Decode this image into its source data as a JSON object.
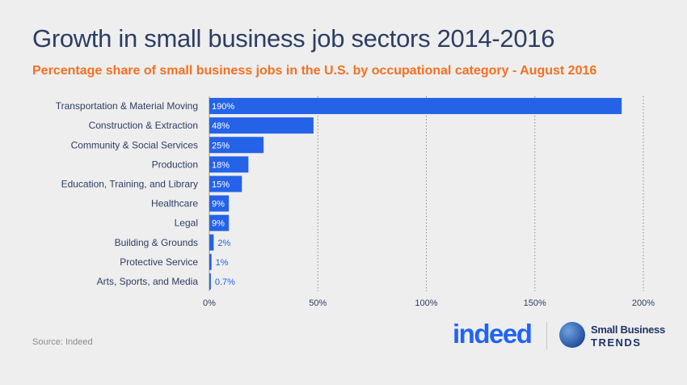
{
  "header": {
    "title": "Growth in small business job sectors 2014-2016",
    "subtitle": "Percentage share of small business jobs in the U.S. by occupational category - August 2016"
  },
  "chart_data": {
    "type": "bar",
    "orientation": "horizontal",
    "categories": [
      "Transportation & Material Moving",
      "Construction & Extraction",
      "Community & Social Services",
      "Production",
      "Education, Training, and Library",
      "Healthcare",
      "Legal",
      "Building & Grounds",
      "Protective Service",
      "Arts, Sports, and Media"
    ],
    "values": [
      190,
      48,
      25,
      18,
      15,
      9,
      9,
      2,
      1,
      0.7
    ],
    "data_labels": [
      "190%",
      "48%",
      "25%",
      "18%",
      "15%",
      "9%",
      "9%",
      "2%",
      "1%",
      "0.7%"
    ],
    "xlim": [
      0,
      200
    ],
    "xticks": [
      0,
      50,
      100,
      150,
      200
    ],
    "xtick_labels": [
      "0%",
      "50%",
      "100%",
      "150%",
      "200%"
    ],
    "grid": "vertical dotted",
    "bar_color": "#2462e8"
  },
  "footer": {
    "source": "Source: Indeed",
    "logo_indeed": "indeed",
    "logo_sbt_line1": "Small Business",
    "logo_sbt_line2": "TRENDS"
  },
  "colors": {
    "title": "#2c3e64",
    "subtitle": "#f37021",
    "bar": "#2462e8",
    "background": "#eeeeee"
  }
}
